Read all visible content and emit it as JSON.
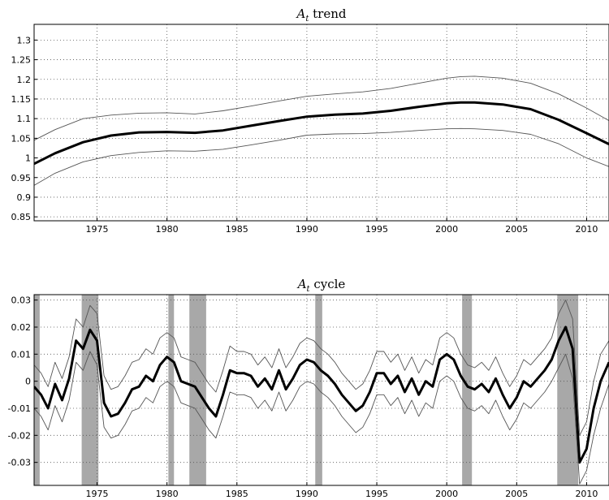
{
  "chart_data": [
    {
      "type": "line",
      "title_symbol": "A",
      "title_subscript": "t",
      "title_text": " trend",
      "xlim": [
        1970.5,
        2011.6
      ],
      "ylim": [
        0.84,
        1.34
      ],
      "x_ticks": [
        1975,
        1980,
        1985,
        1990,
        1995,
        2000,
        2005,
        2010
      ],
      "x_tick_labels": [
        "1975",
        "1980",
        "1985",
        "1990",
        "1995",
        "2000",
        "2005",
        "2010"
      ],
      "y_ticks": [
        0.85,
        0.9,
        0.95,
        1,
        1.05,
        1.1,
        1.15,
        1.2,
        1.25,
        1.3
      ],
      "y_tick_labels": [
        "0.85",
        "0.9",
        "0.95",
        "1",
        "1.05",
        "1.1",
        "1.15",
        "1.2",
        "1.25",
        "1.3"
      ],
      "grid": true,
      "series": [
        {
          "role": "estimate",
          "x": [
            1970.5,
            1972,
            1974,
            1976,
            1978,
            1980,
            1982,
            1984,
            1986,
            1988,
            1990,
            1992,
            1994,
            1996,
            1998,
            2000,
            2001,
            2002,
            2004,
            2006,
            2008,
            2010,
            2011.6
          ],
          "y": [
            0.985,
            1.012,
            1.04,
            1.057,
            1.065,
            1.066,
            1.064,
            1.07,
            1.082,
            1.094,
            1.105,
            1.11,
            1.113,
            1.12,
            1.13,
            1.139,
            1.141,
            1.141,
            1.136,
            1.124,
            1.097,
            1.063,
            1.035
          ]
        },
        {
          "role": "upper band",
          "x": [
            1970.5,
            1972,
            1974,
            1976,
            1978,
            1980,
            1982,
            1984,
            1986,
            1988,
            1990,
            1992,
            1994,
            1996,
            1998,
            2000,
            2001,
            2002,
            2004,
            2006,
            2008,
            2010,
            2011.6
          ],
          "y": [
            1.045,
            1.072,
            1.1,
            1.109,
            1.114,
            1.115,
            1.112,
            1.12,
            1.132,
            1.145,
            1.157,
            1.163,
            1.168,
            1.177,
            1.19,
            1.203,
            1.207,
            1.208,
            1.203,
            1.19,
            1.163,
            1.127,
            1.095
          ]
        },
        {
          "role": "lower band",
          "x": [
            1970.5,
            1972,
            1974,
            1976,
            1978,
            1980,
            1982,
            1984,
            1986,
            1988,
            1990,
            1992,
            1994,
            1996,
            1998,
            2000,
            2001,
            2002,
            2004,
            2006,
            2008,
            2010,
            2011.6
          ],
          "y": [
            0.93,
            0.961,
            0.99,
            1.006,
            1.014,
            1.018,
            1.017,
            1.022,
            1.033,
            1.045,
            1.058,
            1.061,
            1.062,
            1.065,
            1.07,
            1.074,
            1.075,
            1.074,
            1.07,
            1.06,
            1.036,
            1.0,
            0.978
          ]
        }
      ]
    },
    {
      "type": "line",
      "title_symbol": "A",
      "title_subscript": "t",
      "title_text": " cycle",
      "xlim": [
        1970.5,
        2011.6
      ],
      "ylim": [
        -0.0385,
        0.032
      ],
      "x_ticks": [
        1975,
        1980,
        1985,
        1990,
        1995,
        2000,
        2005,
        2010
      ],
      "x_tick_labels": [
        "1975",
        "1980",
        "1985",
        "1990",
        "1995",
        "2000",
        "2005",
        "2010"
      ],
      "y_ticks": [
        -0.03,
        -0.02,
        -0.01,
        0,
        0.01,
        0.02,
        0.03
      ],
      "y_tick_labels": [
        "-0.03",
        "-0.02",
        "-0.01",
        "0",
        "0.01",
        "0.02",
        "0.03"
      ],
      "grid": true,
      "shaded_periods": [
        [
          1970.5,
          1970.9
        ],
        [
          1973.9,
          1975.1
        ],
        [
          1980.1,
          1980.5
        ],
        [
          1981.6,
          1982.8
        ],
        [
          1990.6,
          1991.1
        ],
        [
          2001.1,
          2001.8
        ],
        [
          2007.9,
          2009.4
        ]
      ],
      "series": [
        {
          "role": "estimate",
          "x": [
            1970.5,
            1971,
            1971.5,
            1972,
            1972.5,
            1973,
            1973.5,
            1974,
            1974.5,
            1975,
            1975.5,
            1976,
            1976.5,
            1977,
            1977.5,
            1978,
            1978.5,
            1979,
            1979.5,
            1980,
            1980.5,
            1981,
            1981.5,
            1982,
            1982.5,
            1983,
            1983.5,
            1984,
            1984.5,
            1985,
            1985.5,
            1986,
            1986.5,
            1987,
            1987.5,
            1988,
            1988.5,
            1989,
            1989.5,
            1990,
            1990.5,
            1991,
            1991.5,
            1992,
            1992.5,
            1993,
            1993.5,
            1994,
            1994.5,
            1995,
            1995.5,
            1996,
            1996.5,
            1997,
            1997.5,
            1998,
            1998.5,
            1999,
            1999.5,
            2000,
            2000.5,
            2001,
            2001.5,
            2002,
            2002.5,
            2003,
            2003.5,
            2004,
            2004.5,
            2005,
            2005.5,
            2006,
            2006.5,
            2007,
            2007.5,
            2008,
            2008.5,
            2009,
            2009.5,
            2010,
            2010.5,
            2011,
            2011.6
          ],
          "y": [
            -0.002,
            -0.005,
            -0.01,
            -0.001,
            -0.007,
            0.001,
            0.015,
            0.012,
            0.019,
            0.015,
            -0.008,
            -0.013,
            -0.012,
            -0.008,
            -0.003,
            -0.002,
            0.002,
            0.0,
            0.006,
            0.009,
            0.007,
            0.0,
            -0.001,
            -0.002,
            -0.006,
            -0.01,
            -0.013,
            -0.005,
            0.004,
            0.003,
            0.003,
            0.002,
            -0.002,
            0.001,
            -0.003,
            0.004,
            -0.003,
            0.001,
            0.006,
            0.008,
            0.007,
            0.004,
            0.002,
            -0.001,
            -0.005,
            -0.008,
            -0.011,
            -0.009,
            -0.004,
            0.003,
            0.003,
            -0.001,
            0.002,
            -0.004,
            0.001,
            -0.005,
            0.0,
            -0.002,
            0.008,
            0.01,
            0.008,
            0.002,
            -0.002,
            -0.003,
            -0.001,
            -0.004,
            0.001,
            -0.005,
            -0.01,
            -0.006,
            0.0,
            -0.002,
            0.001,
            0.004,
            0.008,
            0.015,
            0.02,
            0.012,
            -0.03,
            -0.025,
            -0.01,
            0.0,
            0.007
          ]
        },
        {
          "role": "upper band",
          "x": [
            1970.5,
            1971,
            1971.5,
            1972,
            1972.5,
            1973,
            1973.5,
            1974,
            1974.5,
            1975,
            1975.5,
            1976,
            1976.5,
            1977,
            1977.5,
            1978,
            1978.5,
            1979,
            1979.5,
            1980,
            1980.5,
            1981,
            1981.5,
            1982,
            1982.5,
            1983,
            1983.5,
            1984,
            1984.5,
            1985,
            1985.5,
            1986,
            1986.5,
            1987,
            1987.5,
            1988,
            1988.5,
            1989,
            1989.5,
            1990,
            1990.5,
            1991,
            1991.5,
            1992,
            1992.5,
            1993,
            1993.5,
            1994,
            1994.5,
            1995,
            1995.5,
            1996,
            1996.5,
            1997,
            1997.5,
            1998,
            1998.5,
            1999,
            1999.5,
            2000,
            2000.5,
            2001,
            2001.5,
            2002,
            2002.5,
            2003,
            2003.5,
            2004,
            2004.5,
            2005,
            2005.5,
            2006,
            2006.5,
            2007,
            2007.5,
            2008,
            2008.5,
            2009,
            2009.5,
            2010,
            2010.5,
            2011,
            2011.6
          ],
          "y": [
            0.006,
            0.003,
            -0.002,
            0.007,
            0.001,
            0.009,
            0.023,
            0.02,
            0.028,
            0.025,
            0.002,
            -0.003,
            -0.002,
            0.002,
            0.007,
            0.008,
            0.012,
            0.01,
            0.016,
            0.018,
            0.016,
            0.009,
            0.008,
            0.007,
            0.003,
            -0.001,
            -0.004,
            0.004,
            0.013,
            0.011,
            0.011,
            0.01,
            0.006,
            0.009,
            0.005,
            0.012,
            0.005,
            0.009,
            0.014,
            0.016,
            0.015,
            0.012,
            0.01,
            0.007,
            0.003,
            0.0,
            -0.003,
            -0.001,
            0.004,
            0.011,
            0.011,
            0.007,
            0.01,
            0.004,
            0.009,
            0.003,
            0.008,
            0.006,
            0.016,
            0.018,
            0.016,
            0.01,
            0.006,
            0.005,
            0.007,
            0.004,
            0.009,
            0.003,
            -0.002,
            0.002,
            0.008,
            0.006,
            0.009,
            0.012,
            0.016,
            0.025,
            0.03,
            0.023,
            -0.02,
            -0.015,
            0.0,
            0.01,
            0.015
          ]
        },
        {
          "role": "lower band",
          "x": [
            1970.5,
            1971,
            1971.5,
            1972,
            1972.5,
            1973,
            1973.5,
            1974,
            1974.5,
            1975,
            1975.5,
            1976,
            1976.5,
            1977,
            1977.5,
            1978,
            1978.5,
            1979,
            1979.5,
            1980,
            1980.5,
            1981,
            1981.5,
            1982,
            1982.5,
            1983,
            1983.5,
            1984,
            1984.5,
            1985,
            1985.5,
            1986,
            1986.5,
            1987,
            1987.5,
            1988,
            1988.5,
            1989,
            1989.5,
            1990,
            1990.5,
            1991,
            1991.5,
            1992,
            1992.5,
            1993,
            1993.5,
            1994,
            1994.5,
            1995,
            1995.5,
            1996,
            1996.5,
            1997,
            1997.5,
            1998,
            1998.5,
            1999,
            1999.5,
            2000,
            2000.5,
            2001,
            2001.5,
            2002,
            2002.5,
            2003,
            2003.5,
            2004,
            2004.5,
            2005,
            2005.5,
            2006,
            2006.5,
            2007,
            2007.5,
            2008,
            2008.5,
            2009,
            2009.5,
            2010,
            2010.5,
            2011,
            2011.6
          ],
          "y": [
            -0.01,
            -0.013,
            -0.018,
            -0.009,
            -0.015,
            -0.007,
            0.007,
            0.004,
            0.011,
            0.006,
            -0.017,
            -0.021,
            -0.02,
            -0.016,
            -0.011,
            -0.01,
            -0.006,
            -0.008,
            -0.002,
            0.0,
            -0.002,
            -0.008,
            -0.009,
            -0.01,
            -0.014,
            -0.018,
            -0.021,
            -0.013,
            -0.004,
            -0.005,
            -0.005,
            -0.006,
            -0.01,
            -0.007,
            -0.011,
            -0.004,
            -0.011,
            -0.007,
            -0.002,
            0.0,
            -0.001,
            -0.004,
            -0.006,
            -0.009,
            -0.013,
            -0.016,
            -0.019,
            -0.017,
            -0.012,
            -0.005,
            -0.005,
            -0.009,
            -0.006,
            -0.012,
            -0.007,
            -0.013,
            -0.008,
            -0.01,
            0.0,
            0.002,
            0.0,
            -0.006,
            -0.01,
            -0.011,
            -0.009,
            -0.012,
            -0.007,
            -0.013,
            -0.018,
            -0.014,
            -0.008,
            -0.01,
            -0.007,
            -0.004,
            0.0,
            0.005,
            0.01,
            0.001,
            -0.038,
            -0.033,
            -0.02,
            -0.01,
            -0.001
          ]
        }
      ]
    }
  ]
}
